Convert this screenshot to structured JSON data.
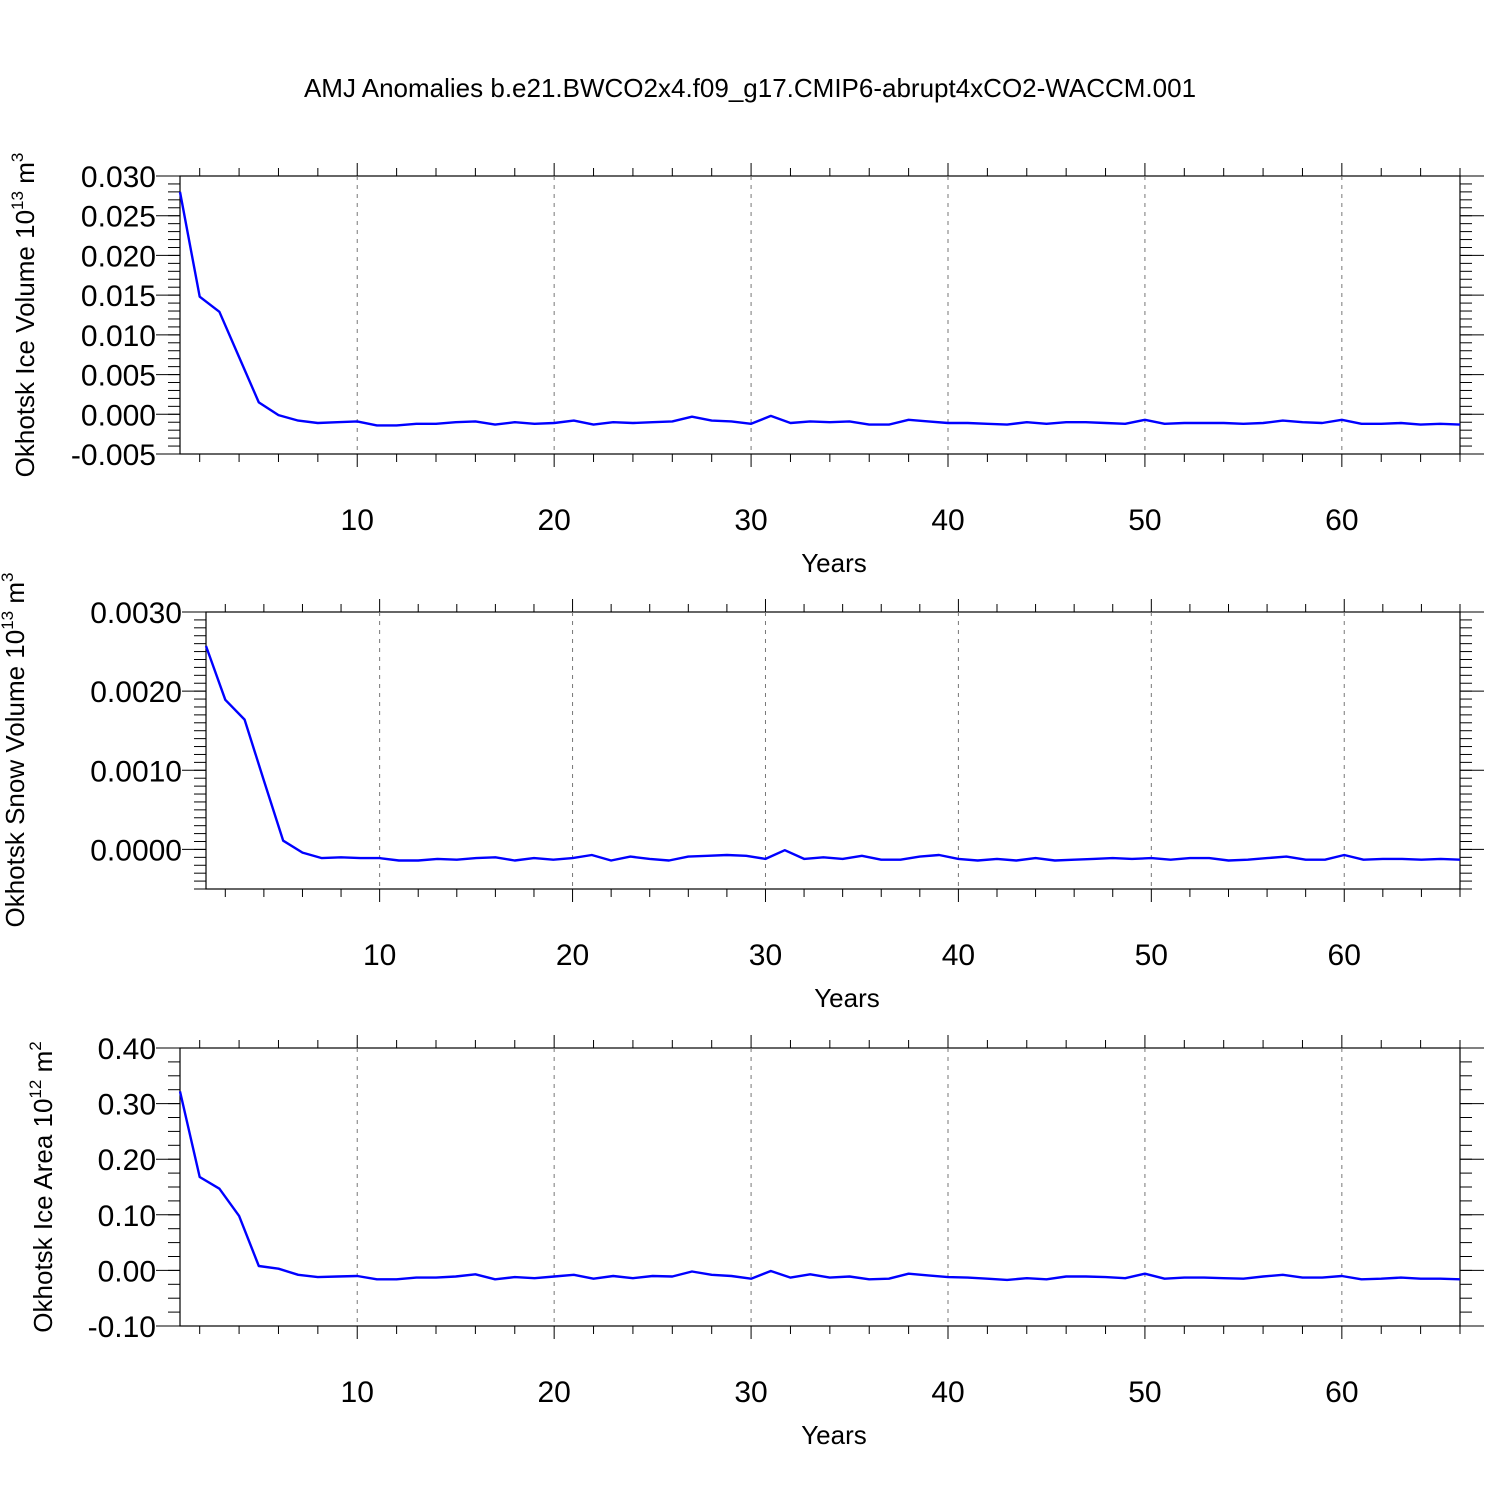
{
  "page": {
    "title": "AMJ Anomalies b.e21.BWCO2x4.f09_g17.CMIP6-abrupt4xCO2-WACCM.001"
  },
  "chart_data": [
    {
      "type": "line",
      "ylabel_main": "Okhotsk Ice Volume 10",
      "ylabel_exp": "13",
      "ylabel_unit": " m",
      "ylabel_unit_exp": "3",
      "xlabel": "Years",
      "xlim": [
        1,
        66
      ],
      "ylim": [
        -0.005,
        0.03
      ],
      "xticks": [
        10,
        20,
        30,
        40,
        50,
        60
      ],
      "xtick_labels": [
        "10",
        "20",
        "30",
        "40",
        "50",
        "60"
      ],
      "yticks": [
        -0.005,
        0.0,
        0.005,
        0.01,
        0.015,
        0.02,
        0.025,
        0.03
      ],
      "ytick_labels": [
        "-0.005",
        "0.000",
        "0.005",
        "0.010",
        "0.015",
        "0.020",
        "0.025",
        "0.030"
      ],
      "grid": "x-dashed",
      "line_color": "#0000ff",
      "series": [
        {
          "x": [
            1,
            2,
            3,
            4,
            5,
            6,
            7,
            8,
            9,
            10,
            11,
            12,
            13,
            14,
            15,
            16,
            17,
            18,
            19,
            20,
            21,
            22,
            23,
            24,
            25,
            26,
            27,
            28,
            29,
            30,
            31,
            32,
            33,
            34,
            35,
            36,
            37,
            38,
            39,
            40,
            41,
            42,
            43,
            44,
            45,
            46,
            47,
            48,
            49,
            50,
            51,
            52,
            53,
            54,
            55,
            56,
            57,
            58,
            59,
            60,
            61,
            62,
            63,
            64,
            65,
            66
          ],
          "values": [
            0.028,
            0.0148,
            0.0129,
            0.0072,
            0.0015,
            -0.0001,
            -0.0008,
            -0.0011,
            -0.001,
            -0.0009,
            -0.0014,
            -0.0014,
            -0.0012,
            -0.0012,
            -0.001,
            -0.0009,
            -0.0013,
            -0.001,
            -0.0012,
            -0.0011,
            -0.0008,
            -0.0013,
            -0.001,
            -0.0011,
            -0.001,
            -0.0009,
            -0.0003,
            -0.0008,
            -0.0009,
            -0.0012,
            -0.0002,
            -0.0011,
            -0.0009,
            -0.001,
            -0.0009,
            -0.0013,
            -0.0013,
            -0.0007,
            -0.0009,
            -0.0011,
            -0.0011,
            -0.0012,
            -0.0013,
            -0.001,
            -0.0012,
            -0.001,
            -0.001,
            -0.0011,
            -0.0012,
            -0.0007,
            -0.0012,
            -0.0011,
            -0.0011,
            -0.0011,
            -0.0012,
            -0.0011,
            -0.0008,
            -0.001,
            -0.0011,
            -0.0007,
            -0.0012,
            -0.0012,
            -0.0011,
            -0.0013,
            -0.0012,
            -0.0013
          ]
        }
      ]
    },
    {
      "type": "line",
      "ylabel_main": "Okhotsk Snow Volume 10",
      "ylabel_exp": "13",
      "ylabel_unit": " m",
      "ylabel_unit_exp": "3",
      "xlabel": "Years",
      "xlim": [
        1,
        66
      ],
      "ylim": [
        -0.0005,
        0.003
      ],
      "xticks": [
        10,
        20,
        30,
        40,
        50,
        60
      ],
      "xtick_labels": [
        "10",
        "20",
        "30",
        "40",
        "50",
        "60"
      ],
      "yticks": [
        0.0,
        0.001,
        0.002,
        0.003
      ],
      "ytick_labels": [
        "0.0000",
        "0.0010",
        "0.0020",
        "0.0030"
      ],
      "grid": "x-dashed",
      "line_color": "#0000ff",
      "series": [
        {
          "x": [
            1,
            2,
            3,
            4,
            5,
            6,
            7,
            8,
            9,
            10,
            11,
            12,
            13,
            14,
            15,
            16,
            17,
            18,
            19,
            20,
            21,
            22,
            23,
            24,
            25,
            26,
            27,
            28,
            29,
            30,
            31,
            32,
            33,
            34,
            35,
            36,
            37,
            38,
            39,
            40,
            41,
            42,
            43,
            44,
            45,
            46,
            47,
            48,
            49,
            50,
            51,
            52,
            53,
            54,
            55,
            56,
            57,
            58,
            59,
            60,
            61,
            62,
            63,
            64,
            65,
            66
          ],
          "values": [
            0.00257,
            0.00189,
            0.00164,
            0.00087,
            0.00011,
            -4e-05,
            -0.00011,
            -0.0001,
            -0.00011,
            -0.00011,
            -0.00014,
            -0.00014,
            -0.00012,
            -0.00013,
            -0.00011,
            -0.0001,
            -0.00014,
            -0.00011,
            -0.00013,
            -0.00011,
            -7e-05,
            -0.00014,
            -9e-05,
            -0.00012,
            -0.00014,
            -9e-05,
            -8e-05,
            -7e-05,
            -8e-05,
            -0.00012,
            -1e-05,
            -0.00012,
            -0.0001,
            -0.00012,
            -8e-05,
            -0.00013,
            -0.00013,
            -9e-05,
            -7e-05,
            -0.00012,
            -0.00014,
            -0.00012,
            -0.00014,
            -0.00011,
            -0.00014,
            -0.00013,
            -0.00012,
            -0.00011,
            -0.00012,
            -0.00011,
            -0.00013,
            -0.00011,
            -0.00011,
            -0.00014,
            -0.00013,
            -0.00011,
            -9e-05,
            -0.00013,
            -0.00013,
            -7e-05,
            -0.00013,
            -0.00012,
            -0.00012,
            -0.00013,
            -0.00012,
            -0.00013
          ]
        }
      ]
    },
    {
      "type": "line",
      "ylabel_main": "Okhotsk Ice Area 10",
      "ylabel_exp": "12",
      "ylabel_unit": " m",
      "ylabel_unit_exp": "2",
      "xlabel": "Years",
      "xlim": [
        1,
        66
      ],
      "ylim": [
        -0.1,
        0.4
      ],
      "xticks": [
        10,
        20,
        30,
        40,
        50,
        60
      ],
      "xtick_labels": [
        "10",
        "20",
        "30",
        "40",
        "50",
        "60"
      ],
      "yticks": [
        -0.1,
        0.0,
        0.1,
        0.2,
        0.3,
        0.4
      ],
      "ytick_labels": [
        "-0.10",
        "0.00",
        "0.10",
        "0.20",
        "0.30",
        "0.40"
      ],
      "grid": "x-dashed",
      "line_color": "#0000ff",
      "series": [
        {
          "x": [
            1,
            2,
            3,
            4,
            5,
            6,
            7,
            8,
            9,
            10,
            11,
            12,
            13,
            14,
            15,
            16,
            17,
            18,
            19,
            20,
            21,
            22,
            23,
            24,
            25,
            26,
            27,
            28,
            29,
            30,
            31,
            32,
            33,
            34,
            35,
            36,
            37,
            38,
            39,
            40,
            41,
            42,
            43,
            44,
            45,
            46,
            47,
            48,
            49,
            50,
            51,
            52,
            53,
            54,
            55,
            56,
            57,
            58,
            59,
            60,
            61,
            62,
            63,
            64,
            65,
            66
          ],
          "values": [
            0.322,
            0.168,
            0.147,
            0.098,
            0.008,
            0.003,
            -0.008,
            -0.012,
            -0.011,
            -0.01,
            -0.016,
            -0.016,
            -0.013,
            -0.013,
            -0.011,
            -0.007,
            -0.016,
            -0.012,
            -0.014,
            -0.011,
            -0.008,
            -0.015,
            -0.01,
            -0.014,
            -0.01,
            -0.011,
            -0.002,
            -0.008,
            -0.01,
            -0.015,
            -0.001,
            -0.013,
            -0.007,
            -0.013,
            -0.011,
            -0.016,
            -0.015,
            -0.006,
            -0.009,
            -0.012,
            -0.013,
            -0.015,
            -0.017,
            -0.014,
            -0.016,
            -0.011,
            -0.011,
            -0.012,
            -0.014,
            -0.006,
            -0.015,
            -0.013,
            -0.013,
            -0.014,
            -0.015,
            -0.011,
            -0.008,
            -0.013,
            -0.013,
            -0.01,
            -0.016,
            -0.015,
            -0.013,
            -0.015,
            -0.015,
            -0.016
          ]
        }
      ]
    }
  ]
}
